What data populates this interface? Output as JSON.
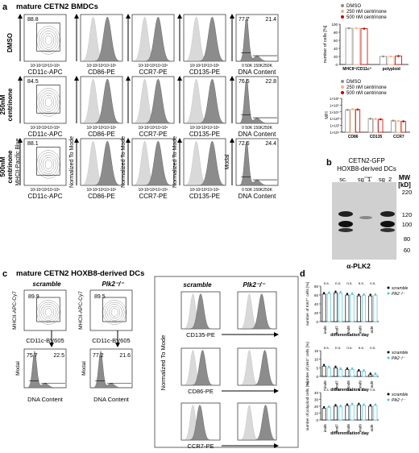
{
  "panel_a": {
    "letter": "a",
    "title": "mature CETN2 BMDCs",
    "rows": [
      {
        "label_lines": [
          "DMSO"
        ],
        "gate_pct": "88.8",
        "g1": "77.7",
        "g2m": "21.4"
      },
      {
        "label_lines": [
          "250nM",
          "centrinone"
        ],
        "gate_pct": "84.5",
        "g1": "76.5",
        "g2m": "22.8"
      },
      {
        "label_lines": [
          "500nM",
          "centrinone"
        ],
        "gate_pct": "88.1",
        "g1": "72.6",
        "g2m": "24.4"
      }
    ],
    "ylabel_first": "MHCII-Pacific Blue",
    "ylabel_hist": "Normalized To Mode",
    "ylabel_modal": "Modal",
    "xlabels": [
      "CD11c-APC",
      "CD86-PE",
      "CCR7-PE",
      "CD135-PE",
      "DNA Content"
    ],
    "log_ticks": "10¹10²10³10⁴10⁵",
    "dna_ticks": "0 50K 150K250K"
  },
  "panel_a_bar1": {
    "ylabel": "number of cells [%]",
    "legend": [
      "DMSO",
      "250 nM centrinone",
      "500 nM centrinone"
    ],
    "legend_colors": [
      "#8c8c8c",
      "#f4b183",
      "#c00000"
    ],
    "yticks": [
      "0",
      "20",
      "40",
      "60",
      "80",
      "100"
    ],
    "categories": [
      "MHCII⁺/CD11c⁺",
      "polyploid"
    ]
  },
  "panel_a_bar2": {
    "ylabel": "MFI",
    "legend": [
      "DMSO",
      "250 nM centrinone",
      "500 nM centrinone"
    ],
    "yticks": [
      "1×10¹",
      "1×10²",
      "1×10³",
      "1×10⁴",
      "1×10⁵",
      "1×10⁶"
    ],
    "categories": [
      "CD86",
      "CD135",
      "CCR7"
    ]
  },
  "panel_b": {
    "letter": "b",
    "title_lines": [
      "CETN2-GFP",
      "HOXB8-derived DCs"
    ],
    "lanes": [
      "sc.",
      "sg_1",
      "sg_2"
    ],
    "mw_label": "MW",
    "kd_label": "[kD]",
    "mw_marks": [
      "220",
      "120",
      "100",
      "80",
      "60"
    ],
    "antibody": "α-PLK2"
  },
  "panel_c": {
    "letter": "c",
    "title": "mature CETN2 HOXB8-derived DCs",
    "conditions": [
      "scramble",
      "Plk2⁻/⁻"
    ],
    "gates": [
      "89.9",
      "89.5"
    ],
    "dna": [
      {
        "g1": "75.7",
        "g2m": "22.5"
      },
      {
        "g1": "77.2",
        "g2m": "21.6"
      }
    ],
    "ylabel_first": "MHCII-APC-Cy7",
    "xlabel_first": "CD11c-BV605",
    "ylabel_modal": "Modal",
    "xlabel_dna": "DNA Content",
    "hist_ylabel": "Normalized To Mode",
    "hist_xlabels": [
      "CD135-PE",
      "CD86-PE",
      "CCR7-PE"
    ]
  },
  "panel_d": {
    "letter": "d",
    "xlabel": "differentiation day",
    "legend": [
      "scramble",
      "Plk2⁻/⁻"
    ],
    "legend_colors": [
      "#000000",
      "#4fc3d8"
    ],
    "days": [
      "imd6",
      "imd7",
      "imd8",
      "imd9",
      "md9"
    ],
    "ns": "n.s.",
    "plots": [
      {
        "ylabel": "number of Ki67⁺ cells [%]",
        "yticks": [
          "0",
          "20",
          "40",
          "60",
          "80"
        ]
      },
      {
        "ylabel": "number of pH3⁺ cells [%]",
        "yticks": [
          "0",
          "5",
          "10",
          "15"
        ]
      },
      {
        "ylabel": "number of polyploid cells [%]",
        "yticks": [
          "0",
          "10",
          "20",
          "30",
          "40"
        ]
      }
    ]
  },
  "chart_data": [
    {
      "type": "bar",
      "panel": "a",
      "title": "",
      "categories": [
        "MHCII⁺/CD11c⁺",
        "polyploid"
      ],
      "series": [
        {
          "name": "DMSO",
          "values": [
            90,
            20
          ]
        },
        {
          "name": "250 nM centrinone",
          "values": [
            90,
            20
          ]
        },
        {
          "name": "500 nM centrinone",
          "values": [
            89,
            21
          ]
        }
      ],
      "ylabel": "number of cells [%]",
      "ylim": [
        0,
        100
      ]
    },
    {
      "type": "bar",
      "panel": "a",
      "title": "",
      "categories": [
        "CD86",
        "CD135",
        "CCR7"
      ],
      "series": [
        {
          "name": "DMSO",
          "values": [
            20000,
            1000,
            500
          ]
        },
        {
          "name": "250 nM centrinone",
          "values": [
            25000,
            900,
            450
          ]
        },
        {
          "name": "500 nM centrinone",
          "values": [
            22000,
            800,
            400
          ]
        }
      ],
      "ylabel": "MFI",
      "yscale": "log",
      "ylim": [
        10,
        1000000
      ]
    },
    {
      "type": "bar",
      "panel": "d",
      "title": "",
      "categories": [
        "imd6",
        "imd7",
        "imd8",
        "imd9",
        "md9"
      ],
      "series": [
        {
          "name": "scramble",
          "values": [
            62,
            65,
            60,
            58,
            58
          ]
        },
        {
          "name": "Plk2⁻/⁻",
          "values": [
            63,
            64,
            61,
            59,
            59
          ]
        }
      ],
      "ylabel": "number of Ki67⁺ cells [%]",
      "ylim": [
        0,
        80
      ]
    },
    {
      "type": "bar",
      "panel": "d",
      "title": "",
      "categories": [
        "imd6",
        "imd7",
        "imd8",
        "imd9",
        "md9"
      ],
      "series": [
        {
          "name": "scramble",
          "values": [
            6,
            5,
            4,
            3,
            1
          ]
        },
        {
          "name": "Plk2⁻/⁻",
          "values": [
            5,
            4,
            4,
            3,
            1
          ]
        }
      ],
      "ylabel": "number of pH3⁺ cells [%]",
      "ylim": [
        0,
        15
      ]
    },
    {
      "type": "bar",
      "panel": "d",
      "title": "",
      "categories": [
        "imd6",
        "imd7",
        "imd8",
        "imd9",
        "md9"
      ],
      "series": [
        {
          "name": "scramble",
          "values": [
            17,
            20,
            21,
            22,
            20
          ]
        },
        {
          "name": "Plk2⁻/⁻",
          "values": [
            18,
            19,
            22,
            21,
            21
          ]
        }
      ],
      "ylabel": "number of polyploid cells [%]",
      "ylim": [
        0,
        40
      ]
    }
  ]
}
